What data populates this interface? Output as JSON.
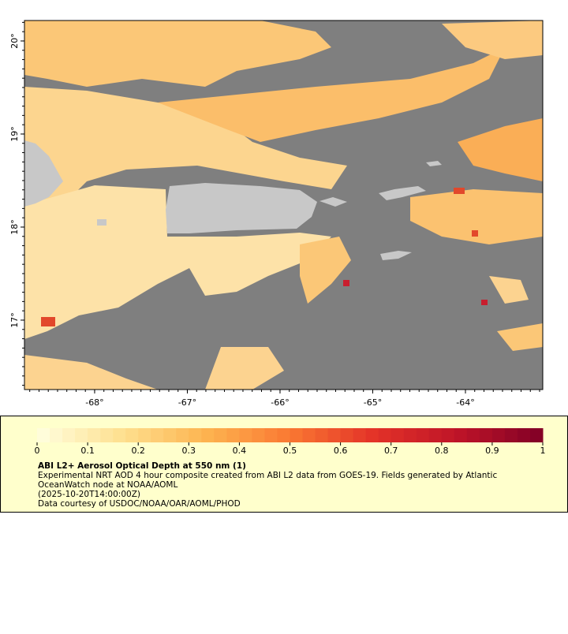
{
  "map": {
    "lon_range": [
      -68.757,
      -63.166
    ],
    "lat_range": [
      16.254,
      20.22
    ],
    "lon_ticks": [
      {
        "value": -68,
        "label": "-68°"
      },
      {
        "value": -67,
        "label": "-67°"
      },
      {
        "value": -66,
        "label": "-66°"
      },
      {
        "value": -65,
        "label": "-65°"
      },
      {
        "value": -64,
        "label": "-64°"
      }
    ],
    "lat_ticks": [
      {
        "value": 20,
        "label": "20°"
      },
      {
        "value": 19,
        "label": "19°"
      },
      {
        "value": 18,
        "label": "18°"
      },
      {
        "value": 17,
        "label": "17°"
      }
    ]
  },
  "colorbar": {
    "range": [
      0,
      1
    ],
    "ticks": [
      0,
      0.1,
      0.2,
      0.3,
      0.4,
      0.5,
      0.6,
      0.7,
      0.8,
      0.9,
      1
    ]
  },
  "caption": {
    "title": "ABI L2+ Aerosol Optical Depth at 550 nm (1)",
    "lines": [
      "Experimental NRT AOD 4 hour composite created from ABI L2 data from GOES-19. Fields generated by Atlantic",
      "OceanWatch node at NOAA/AOML",
      "(2025-10-20T14:00:00Z)",
      "Data courtesy of USDOC/NOAA/OAR/AOML/PHOD"
    ]
  }
}
